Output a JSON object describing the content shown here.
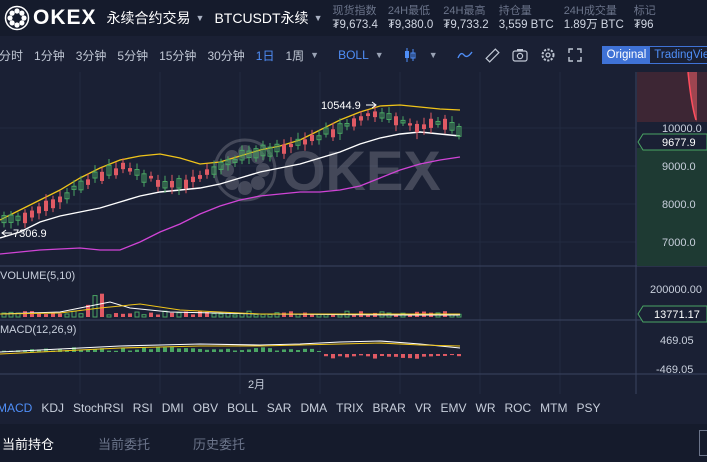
{
  "header": {
    "logo_text": "OKEX",
    "product": "永续合约交易",
    "symbol": "BTCUSDT永续",
    "stats": [
      {
        "label": "现货指数",
        "value": "₮9,673.4"
      },
      {
        "label": "24H最低",
        "value": "₮9,380.0"
      },
      {
        "label": "24H最高",
        "value": "₮9,733.2"
      },
      {
        "label": "持仓量",
        "value": "3,559 BTC"
      },
      {
        "label": "24H成交量",
        "value": "1.89万 BTC"
      },
      {
        "label": "标记",
        "value": "₮96"
      }
    ]
  },
  "toolbar": {
    "timeframes": [
      "分时",
      "1分钟",
      "3分钟",
      "5分钟",
      "15分钟",
      "30分钟",
      "1日",
      "1周"
    ],
    "active_timeframe": "1日",
    "indicator": "BOLL",
    "view_original": "Original",
    "view_tradingview": "TradingView"
  },
  "chart": {
    "high_label": "10544.9",
    "low_label": "7306.9",
    "month_label": "2月",
    "price_axis": [
      "10000.0",
      "9000.0",
      "8000.0",
      "7000.0"
    ],
    "current_price": "9677.9",
    "volume_title": "VOLUME(5,10)",
    "volume_axis": "200000.00",
    "current_volume": "13771.17",
    "macd_title": "MACD(12,26,9)",
    "macd_axis": [
      "469.05",
      "-469.05"
    ],
    "watermark": "OKEX",
    "colors": {
      "up": "#4aa563",
      "down": "#e05a64",
      "upper": "#f0c419",
      "middle": "#ffffff",
      "lower": "#d044d6"
    }
  },
  "indicators": {
    "items": [
      "MACD",
      "KDJ",
      "StochRSI",
      "RSI",
      "DMI",
      "OBV",
      "BOLL",
      "SAR",
      "DMA",
      "TRIX",
      "BRAR",
      "VR",
      "EMV",
      "WR",
      "ROC",
      "MTM",
      "PSY"
    ],
    "active": "MACD"
  },
  "bottom_tabs": [
    {
      "label": "当前持仓"
    },
    {
      "label": "当前委托"
    },
    {
      "label": "历史委托"
    }
  ]
}
